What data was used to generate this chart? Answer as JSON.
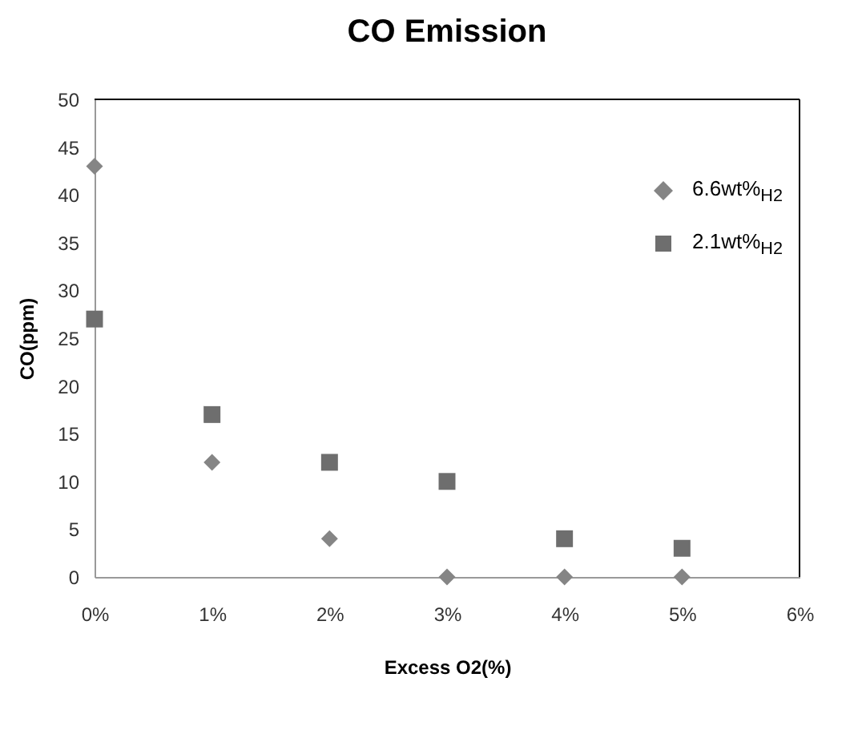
{
  "chart_data": {
    "type": "scatter",
    "title": "CO Emission",
    "xlabel": "Excess O2(%)",
    "ylabel": "CO(ppm)",
    "x": [
      0,
      1,
      2,
      3,
      4,
      5
    ],
    "series": [
      {
        "name": "6.6wt%$_{H2}$",
        "color": "#858585",
        "marker": "diamond",
        "values": [
          43,
          12,
          4,
          0,
          0,
          0
        ]
      },
      {
        "name": "2.1wt%$_{H2}$",
        "color": "#6e6e6e",
        "marker": "square",
        "values": [
          27,
          17,
          12,
          10,
          4,
          3
        ]
      }
    ],
    "xlim": [
      0,
      6
    ],
    "xticks": [
      {
        "value": 0,
        "label": "0%"
      },
      {
        "value": 1,
        "label": "1%"
      },
      {
        "value": 2,
        "label": "2%"
      },
      {
        "value": 3,
        "label": "3%"
      },
      {
        "value": 4,
        "label": "4%"
      },
      {
        "value": 5,
        "label": "5%"
      },
      {
        "value": 6,
        "label": "6%"
      }
    ],
    "ylim": [
      0,
      50
    ],
    "yticks": [
      0,
      5,
      10,
      15,
      20,
      25,
      30,
      35,
      40,
      45,
      50
    ],
    "grid": false,
    "legend": "top right"
  }
}
